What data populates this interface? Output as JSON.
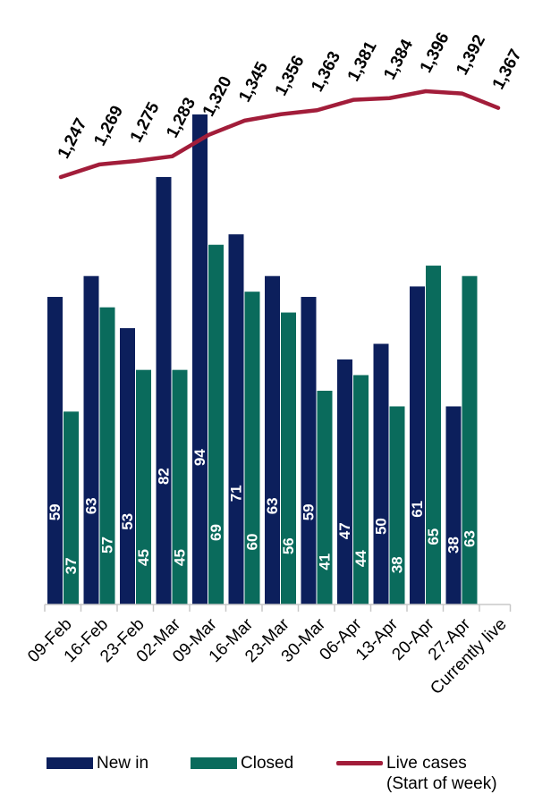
{
  "chart_data": {
    "type": "bar",
    "categories": [
      "09-Feb",
      "16-Feb",
      "23-Feb",
      "02-Mar",
      "09-Mar",
      "16-Mar",
      "23-Mar",
      "30-Mar",
      "06-Apr",
      "13-Apr",
      "20-Apr",
      "27-Apr",
      "Currently live"
    ],
    "series": [
      {
        "name": "New in",
        "type": "bar",
        "color": "#0c1f5c",
        "values": [
          59,
          63,
          53,
          82,
          94,
          71,
          63,
          59,
          47,
          50,
          61,
          38,
          null
        ]
      },
      {
        "name": "Closed",
        "type": "bar",
        "color": "#0a6b5c",
        "values": [
          37,
          57,
          45,
          45,
          69,
          60,
          56,
          41,
          44,
          38,
          65,
          63,
          null
        ]
      },
      {
        "name": "Live cases",
        "type": "line",
        "color": "#a21d3a",
        "values": [
          1247,
          1269,
          1275,
          1283,
          1320,
          1345,
          1356,
          1363,
          1381,
          1384,
          1396,
          1392,
          1367
        ],
        "labels": [
          "1,247",
          "1,269",
          "1,275",
          "1,283",
          "1,320",
          "1,345",
          "1,356",
          "1,363",
          "1,381",
          "1,384",
          "1,396",
          "1,392",
          "1,367"
        ]
      }
    ],
    "legend": {
      "new_in": "New in",
      "closed": "Closed",
      "live_line1": "Live cases",
      "live_line2": "(Start of week)",
      "position": "bottom"
    },
    "bar_ylim": [
      0,
      96
    ],
    "line_ylim": [
      1100,
      1410
    ],
    "grid": false
  }
}
